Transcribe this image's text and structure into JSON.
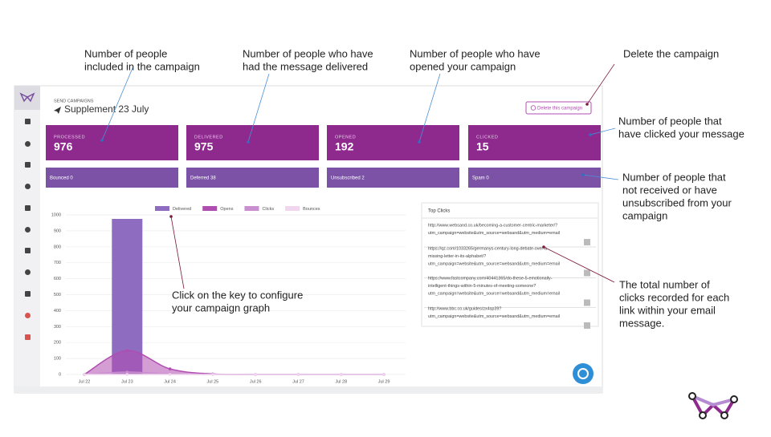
{
  "annotations": [
    {
      "lines": [
        "Number of people",
        "included in the campaign"
      ]
    },
    {
      "lines": [
        "Number of people who have",
        "had the message delivered"
      ]
    },
    {
      "lines": [
        "Number of people who have",
        "opened your campaign"
      ]
    },
    {
      "lines": [
        "Delete the campaign"
      ]
    },
    {
      "lines": [
        "Number of people that",
        "have clicked your message"
      ]
    },
    {
      "lines": [
        "Number of people that",
        "not received or have",
        "unsubscribed from your",
        "campaign"
      ]
    },
    {
      "lines": [
        "Click on the key to configure",
        "your campaign graph"
      ]
    },
    {
      "lines": [
        "The total number of",
        "clicks recorded for each",
        "link within your email",
        "message."
      ]
    }
  ],
  "header": {
    "section": "SEND CAMPAIGNS",
    "title": "Supplement 23 July",
    "delete_button": "Delete this campaign"
  },
  "stats": [
    {
      "label": "PROCESSED",
      "value": 976
    },
    {
      "label": "DELIVERED",
      "value": 975
    },
    {
      "label": "OPENED",
      "value": 192
    },
    {
      "label": "CLICKED",
      "value": 15
    }
  ],
  "substats": [
    "Bounced 0",
    "Deferred 38",
    "Unsubscribed 2",
    "Spam 0"
  ],
  "chart_data": {
    "type": "bar",
    "categories": [
      "Jul 22",
      "Jul 23",
      "Jul 24",
      "Jul 25",
      "Jul 26",
      "Jul 27",
      "Jul 28",
      "Jul 29"
    ],
    "series": [
      {
        "name": "Delivered",
        "type": "bar",
        "color": "#8e6cbf",
        "values": [
          0,
          975,
          0,
          0,
          0,
          0,
          0,
          0
        ]
      },
      {
        "name": "Opens",
        "type": "area",
        "color": "#b04db0",
        "values": [
          0,
          150,
          35,
          3,
          0,
          0,
          0,
          0
        ]
      },
      {
        "name": "Clicks",
        "type": "area",
        "color": "#c98fd0",
        "values": [
          0,
          15,
          3,
          0,
          0,
          0,
          0,
          0
        ]
      },
      {
        "name": "Bounces",
        "type": "area",
        "color": "#f0d7ef",
        "values": [
          0,
          0,
          0,
          0,
          0,
          0,
          0,
          0
        ]
      }
    ],
    "ylim": [
      0,
      1000
    ],
    "yticks": [
      0,
      100,
      200,
      300,
      400,
      500,
      600,
      700,
      800,
      900,
      1000
    ],
    "grid": true
  },
  "top_clicks": {
    "title": "Top Clicks",
    "links": [
      {
        "lines": [
          "http://www.websand.co.uk/becoming-a-customer-centric-marketer/?",
          "utm_campaign=website&utm_source=websand&utm_medium=email"
        ]
      },
      {
        "lines": [
          "https://qz.com/1033265/germanys-century-long-debate-over-a-",
          "missing-letter-in-its-alphabet/?",
          "utm_campaign=website&utm_source=websand&utm_medium=email"
        ]
      },
      {
        "lines": [
          "https://www.fastcompany.com/40441365/do-these-5-emotionally-",
          "intelligent-things-within-5-minutes-of-meeting-someone?",
          "utm_campaign=website&utm_source=websand&utm_medium=email"
        ]
      },
      {
        "lines": [
          "http://www.bbc.co.uk/guides/zx4sp39?",
          "utm_campaign=website&utm_source=websand&utm_medium=email"
        ]
      }
    ]
  }
}
